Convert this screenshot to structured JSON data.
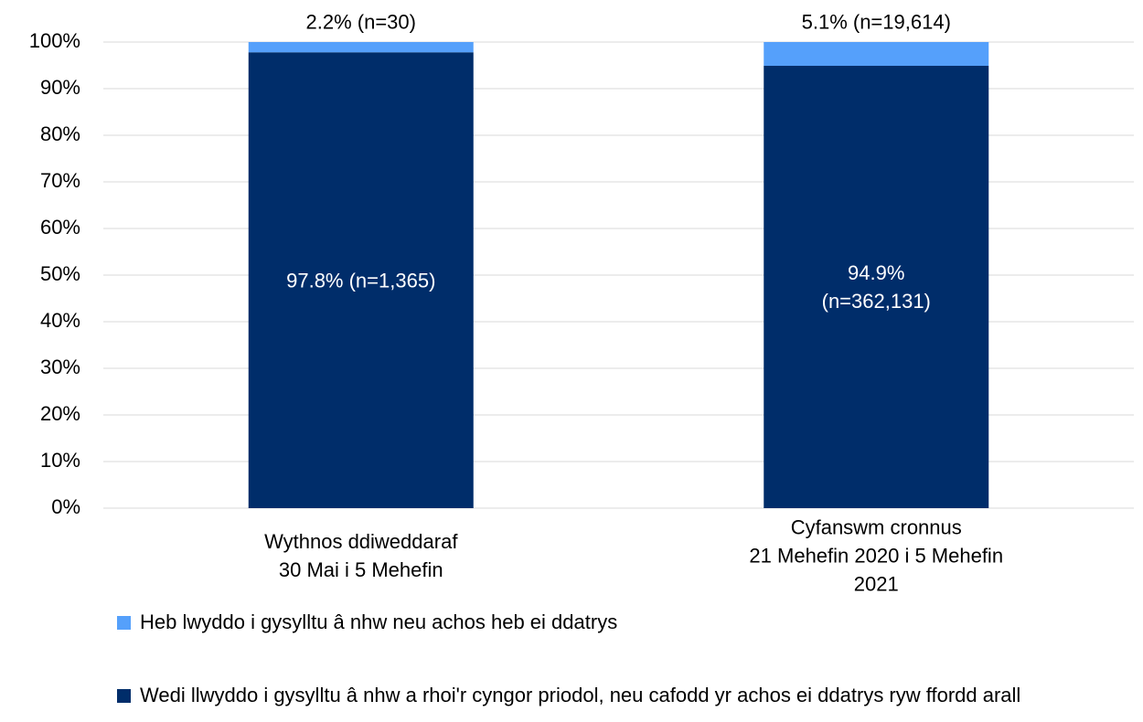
{
  "chart_data": {
    "type": "stacked_bar",
    "categories": [
      "Wythnos ddiweddaraf\n30 Mai i 5 Mehefin",
      "Cyfanswm cronnus\n21 Mehefin 2020 i 5 Mehefin 2021"
    ],
    "series": [
      {
        "name": "Wedi llwyddo i gysylltu â nhw a rhoi'r cyngor priodol, neu cafodd yr achos ei ddatrys ryw ffordd arall",
        "color": "#002d6a",
        "values": [
          97.8,
          94.9
        ],
        "value_labels": [
          "97.8% (n=1,365)",
          "94.9%\n(n=362,131)"
        ]
      },
      {
        "name": "Heb lwyddo i gysylltu â nhw neu achos heb ei ddatrys",
        "color": "#55a0fb",
        "values": [
          2.2,
          5.1
        ],
        "value_labels": [
          "2.2% (n=30)",
          "5.1% (n=19,614)"
        ]
      }
    ],
    "ylim": [
      0,
      100
    ],
    "yticks": [
      {
        "value": 0,
        "label": "0%"
      },
      {
        "value": 10,
        "label": "10%"
      },
      {
        "value": 20,
        "label": "20%"
      },
      {
        "value": 30,
        "label": "30%"
      },
      {
        "value": 40,
        "label": "40%"
      },
      {
        "value": 50,
        "label": "50%"
      },
      {
        "value": 60,
        "label": "60%"
      },
      {
        "value": 70,
        "label": "70%"
      },
      {
        "value": 80,
        "label": "80%"
      },
      {
        "value": 90,
        "label": "90%"
      },
      {
        "value": 100,
        "label": "100%"
      }
    ],
    "grid": true
  }
}
